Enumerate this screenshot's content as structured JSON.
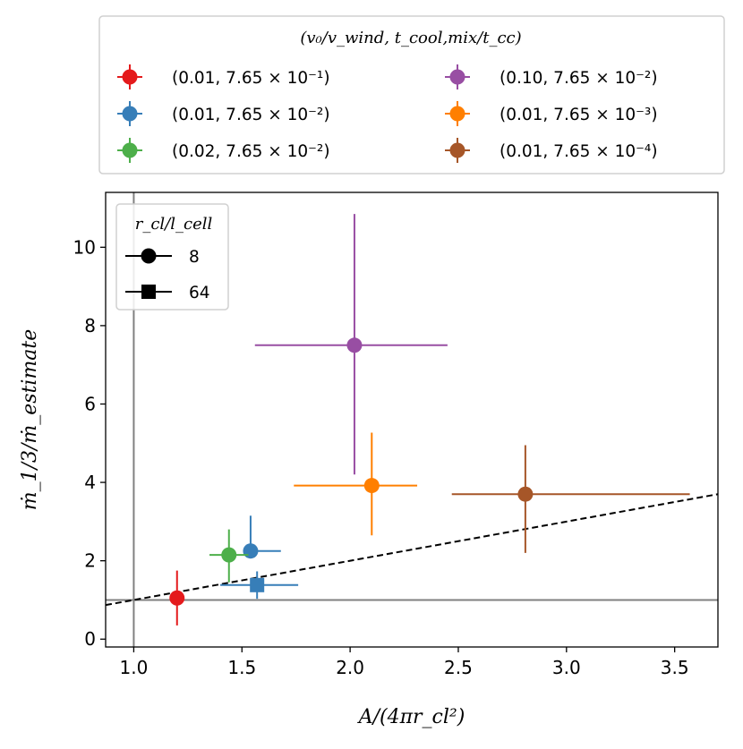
{
  "chart_data": {
    "type": "scatter",
    "xlabel": "A/(4πr_cl²)",
    "ylabel": "ṁ_1/3/ṁ_estimate",
    "xlim": [
      0.87,
      3.7
    ],
    "ylim": [
      -0.2,
      11.4
    ],
    "x_ticks": [
      "1.0",
      "1.5",
      "2.0",
      "2.5",
      "3.0",
      "3.5"
    ],
    "y_ticks": [
      "0",
      "2",
      "4",
      "6",
      "8",
      "10"
    ],
    "grid": false,
    "reference_lines": {
      "vertical_x": 1.0,
      "horizontal_y": 1.0,
      "dashed_line": {
        "x": [
          0.87,
          3.7
        ],
        "y": [
          0.87,
          3.7
        ]
      }
    },
    "color_legend": {
      "title": "(v₀/v_wind, t_cool,mix/t_cc)",
      "placement": "above plot",
      "entries": [
        {
          "label": "(0.01, 7.65 × 10⁻¹)",
          "color": "#e41a1c"
        },
        {
          "label": "(0.01, 7.65 × 10⁻²)",
          "color": "#377eb8"
        },
        {
          "label": "(0.02, 7.65 × 10⁻²)",
          "color": "#4daf4a"
        },
        {
          "label": "(0.10, 7.65 × 10⁻²)",
          "color": "#984ea3"
        },
        {
          "label": "(0.01, 7.65 × 10⁻³)",
          "color": "#ff7f00"
        },
        {
          "label": "(0.01, 7.65 × 10⁻⁴)",
          "color": "#a65628"
        }
      ]
    },
    "marker_legend": {
      "title": "r_cl/l_cell",
      "placement": "upper-left",
      "entries": [
        {
          "label": "8",
          "marker": "circle"
        },
        {
          "label": "64",
          "marker": "square"
        }
      ]
    },
    "series": [
      {
        "color": "#e41a1c",
        "marker": "circle",
        "x": 1.2,
        "y": 1.05,
        "xerr": [
          0.0,
          0.0
        ],
        "yerr": [
          0.7,
          0.7
        ]
      },
      {
        "color": "#377eb8",
        "marker": "circle",
        "x": 1.54,
        "y": 2.25,
        "xerr": [
          0.0,
          0.14
        ],
        "yerr": [
          0.0,
          0.9
        ]
      },
      {
        "color": "#377eb8",
        "marker": "square",
        "x": 1.57,
        "y": 1.38,
        "xerr": [
          0.17,
          0.19
        ],
        "yerr": [
          0.35,
          0.35
        ]
      },
      {
        "color": "#4daf4a",
        "marker": "circle",
        "x": 1.44,
        "y": 2.15,
        "xerr": [
          0.09,
          0.09
        ],
        "yerr": [
          0.7,
          0.65
        ]
      },
      {
        "color": "#984ea3",
        "marker": "circle",
        "x": 2.02,
        "y": 7.5,
        "xerr": [
          0.46,
          0.43
        ],
        "yerr": [
          3.3,
          3.35
        ]
      },
      {
        "color": "#ff7f00",
        "marker": "circle",
        "x": 2.1,
        "y": 3.92,
        "xerr": [
          0.36,
          0.21
        ],
        "yerr": [
          1.27,
          1.35
        ]
      },
      {
        "color": "#a65628",
        "marker": "circle",
        "x": 2.81,
        "y": 3.7,
        "xerr": [
          0.34,
          0.76
        ],
        "yerr": [
          1.5,
          1.25
        ]
      }
    ]
  }
}
